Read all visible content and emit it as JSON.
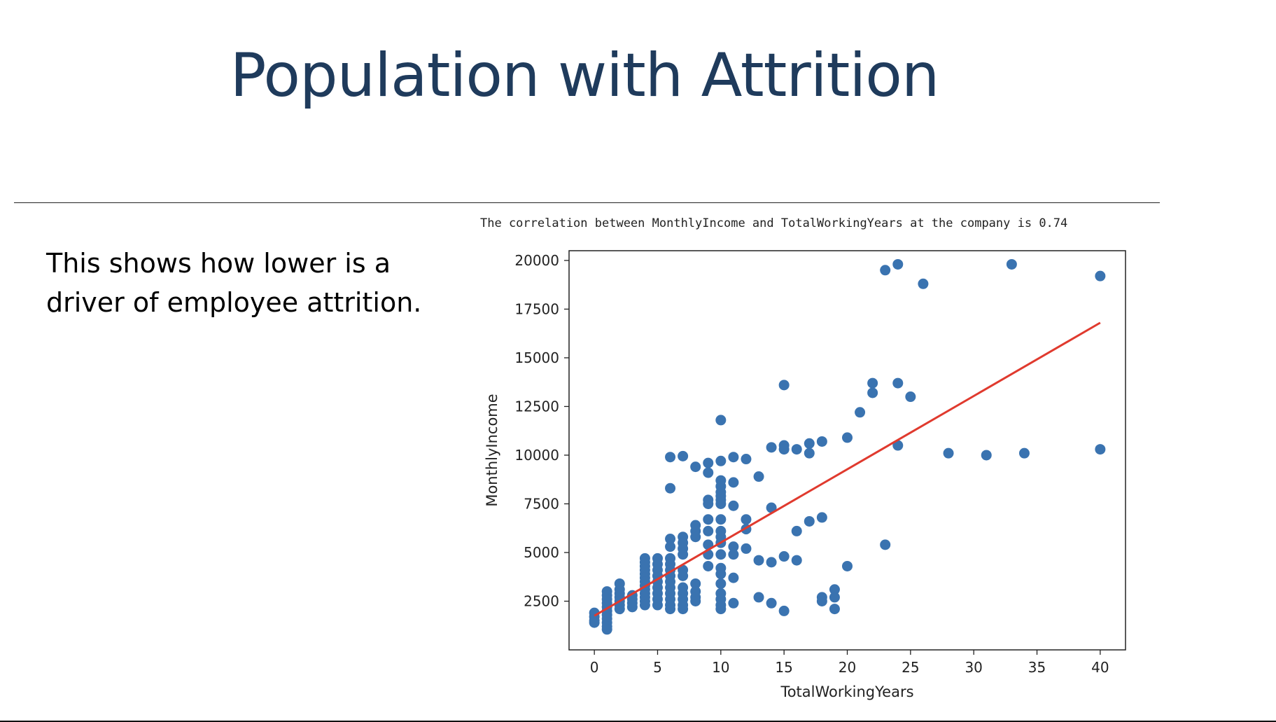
{
  "slide": {
    "title": "Population with Attrition",
    "body_text": "This shows how lower is a driver of employee attrition.",
    "caption": "The correlation between MonthlyIncome and TotalWorkingYears at the company is 0.74"
  },
  "colors": {
    "points": "#3a73b0",
    "trendline": "#e03a2e",
    "title": "#1f3b5c"
  },
  "chart_data": {
    "type": "scatter",
    "title": "",
    "xlabel": "TotalWorkingYears",
    "ylabel": "MonthlyIncome",
    "xlim": [
      -2,
      42
    ],
    "ylim": [
      0,
      20500
    ],
    "xticks": [
      0,
      5,
      10,
      15,
      20,
      25,
      30,
      35,
      40
    ],
    "yticks": [
      2500,
      5000,
      7500,
      10000,
      12500,
      15000,
      17500,
      20000
    ],
    "grid": false,
    "legend": "none",
    "trendline": {
      "x": [
        0,
        40
      ],
      "y": [
        1750,
        16800
      ]
    },
    "points": [
      [
        0,
        1900
      ],
      [
        0,
        1700
      ],
      [
        0,
        1500
      ],
      [
        0,
        1400
      ],
      [
        1,
        3000
      ],
      [
        1,
        2800
      ],
      [
        1,
        2600
      ],
      [
        1,
        2400
      ],
      [
        1,
        2200
      ],
      [
        1,
        2000
      ],
      [
        1,
        1800
      ],
      [
        1,
        1600
      ],
      [
        1,
        1400
      ],
      [
        1,
        1200
      ],
      [
        1,
        1050
      ],
      [
        2,
        3400
      ],
      [
        2,
        3100
      ],
      [
        2,
        2900
      ],
      [
        2,
        2700
      ],
      [
        2,
        2500
      ],
      [
        2,
        2300
      ],
      [
        2,
        2100
      ],
      [
        3,
        2800
      ],
      [
        3,
        2600
      ],
      [
        3,
        2400
      ],
      [
        3,
        2200
      ],
      [
        4,
        4700
      ],
      [
        4,
        4500
      ],
      [
        4,
        4300
      ],
      [
        4,
        4100
      ],
      [
        4,
        3900
      ],
      [
        4,
        3700
      ],
      [
        4,
        3500
      ],
      [
        4,
        3300
      ],
      [
        4,
        3100
      ],
      [
        4,
        2900
      ],
      [
        4,
        2700
      ],
      [
        4,
        2500
      ],
      [
        4,
        2300
      ],
      [
        5,
        4700
      ],
      [
        5,
        4400
      ],
      [
        5,
        4100
      ],
      [
        5,
        3800
      ],
      [
        5,
        3500
      ],
      [
        5,
        3200
      ],
      [
        5,
        2900
      ],
      [
        5,
        2600
      ],
      [
        5,
        2300
      ],
      [
        6,
        9900
      ],
      [
        6,
        8300
      ],
      [
        6,
        5700
      ],
      [
        6,
        5300
      ],
      [
        6,
        4700
      ],
      [
        6,
        4400
      ],
      [
        6,
        4100
      ],
      [
        6,
        3800
      ],
      [
        6,
        3500
      ],
      [
        6,
        3200
      ],
      [
        6,
        2900
      ],
      [
        6,
        2600
      ],
      [
        6,
        2300
      ],
      [
        6,
        2100
      ],
      [
        7,
        9950
      ],
      [
        7,
        5800
      ],
      [
        7,
        5500
      ],
      [
        7,
        5200
      ],
      [
        7,
        4900
      ],
      [
        7,
        4100
      ],
      [
        7,
        3800
      ],
      [
        7,
        3200
      ],
      [
        7,
        2900
      ],
      [
        7,
        2600
      ],
      [
        7,
        2300
      ],
      [
        7,
        2100
      ],
      [
        8,
        9400
      ],
      [
        8,
        6400
      ],
      [
        8,
        6100
      ],
      [
        8,
        5800
      ],
      [
        8,
        3400
      ],
      [
        8,
        3000
      ],
      [
        8,
        2700
      ],
      [
        8,
        2500
      ],
      [
        9,
        9600
      ],
      [
        9,
        9100
      ],
      [
        9,
        7700
      ],
      [
        9,
        7500
      ],
      [
        9,
        6700
      ],
      [
        9,
        6100
      ],
      [
        9,
        5400
      ],
      [
        9,
        4900
      ],
      [
        9,
        4300
      ],
      [
        10,
        11800
      ],
      [
        10,
        9700
      ],
      [
        10,
        8700
      ],
      [
        10,
        8400
      ],
      [
        10,
        8100
      ],
      [
        10,
        7900
      ],
      [
        10,
        7700
      ],
      [
        10,
        7500
      ],
      [
        10,
        6700
      ],
      [
        10,
        6100
      ],
      [
        10,
        5800
      ],
      [
        10,
        5500
      ],
      [
        10,
        4900
      ],
      [
        10,
        4200
      ],
      [
        10,
        3900
      ],
      [
        10,
        3400
      ],
      [
        10,
        2900
      ],
      [
        10,
        2600
      ],
      [
        10,
        2300
      ],
      [
        10,
        2100
      ],
      [
        11,
        9900
      ],
      [
        11,
        8600
      ],
      [
        11,
        7400
      ],
      [
        11,
        5300
      ],
      [
        11,
        4900
      ],
      [
        11,
        3700
      ],
      [
        11,
        2400
      ],
      [
        12,
        9800
      ],
      [
        12,
        6700
      ],
      [
        12,
        6200
      ],
      [
        12,
        5200
      ],
      [
        13,
        8900
      ],
      [
        13,
        4600
      ],
      [
        13,
        2700
      ],
      [
        14,
        10400
      ],
      [
        14,
        7300
      ],
      [
        14,
        4500
      ],
      [
        14,
        2400
      ],
      [
        15,
        13600
      ],
      [
        15,
        10500
      ],
      [
        15,
        10300
      ],
      [
        15,
        4800
      ],
      [
        15,
        2000
      ],
      [
        16,
        10300
      ],
      [
        16,
        6100
      ],
      [
        16,
        4600
      ],
      [
        17,
        10600
      ],
      [
        17,
        10100
      ],
      [
        17,
        6600
      ],
      [
        18,
        10700
      ],
      [
        18,
        6800
      ],
      [
        18,
        2700
      ],
      [
        18,
        2500
      ],
      [
        19,
        3100
      ],
      [
        19,
        2700
      ],
      [
        19,
        2100
      ],
      [
        20,
        10900
      ],
      [
        20,
        4300
      ],
      [
        21,
        12200
      ],
      [
        22,
        13700
      ],
      [
        22,
        13200
      ],
      [
        23,
        19500
      ],
      [
        23,
        5400
      ],
      [
        24,
        19800
      ],
      [
        24,
        13700
      ],
      [
        24,
        10500
      ],
      [
        25,
        13000
      ],
      [
        26,
        18800
      ],
      [
        28,
        10100
      ],
      [
        31,
        10000
      ],
      [
        33,
        19800
      ],
      [
        34,
        10100
      ],
      [
        40,
        19200
      ],
      [
        40,
        10300
      ]
    ]
  }
}
